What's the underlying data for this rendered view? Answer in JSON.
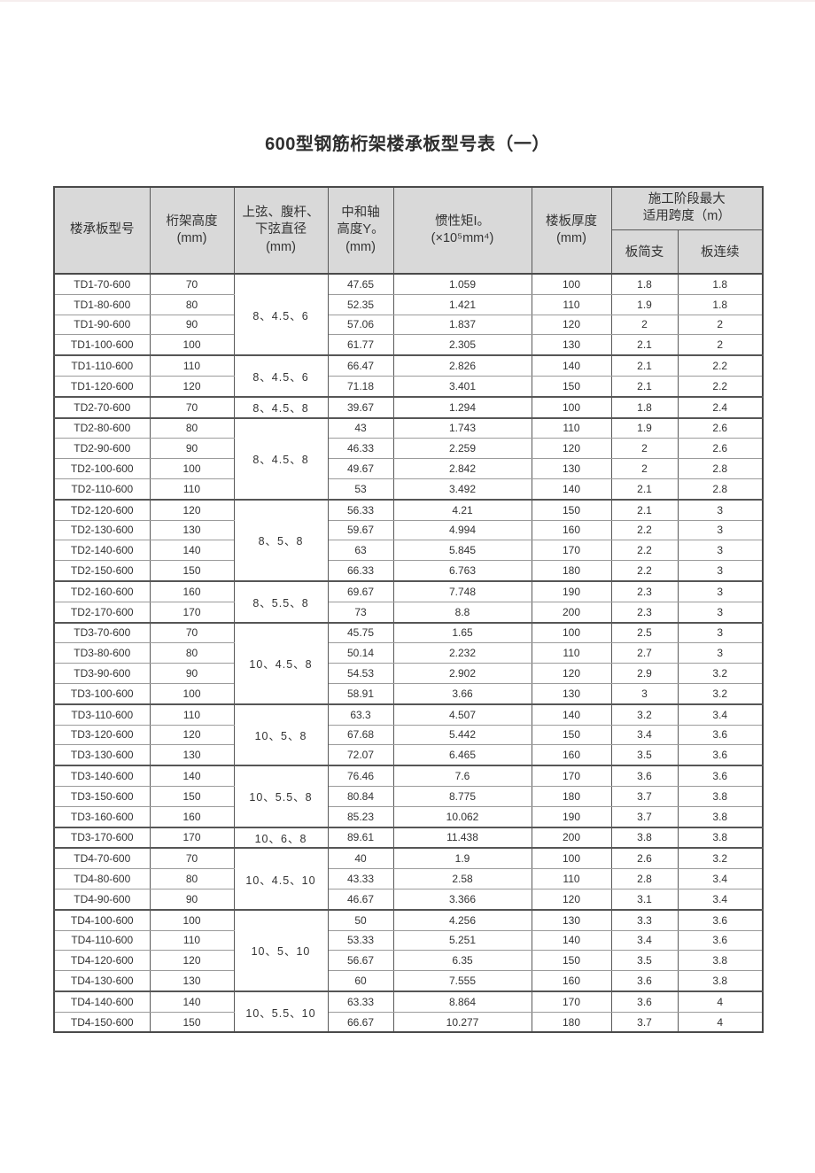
{
  "page": {
    "title": "600型钢筋桁架楼承板型号表（一）"
  },
  "colors": {
    "header_bg": "#d9d9d9",
    "border_dark": "#4a4a4a",
    "border": "#595959",
    "border_light": "#9b9b9b",
    "text": "#333333"
  },
  "table": {
    "header": {
      "model": "楼承板型号",
      "truss_height": [
        "桁架高度",
        "(mm)"
      ],
      "diameter": [
        "上弦、腹杆、",
        "下弦直径",
        "(mm)"
      ],
      "neutral_axis": [
        "中和轴",
        "高度Y。",
        "(mm)"
      ],
      "inertia": [
        "惯性矩I。",
        "(×10⁵mm⁴)"
      ],
      "slab_thickness": [
        "楼板厚度",
        "(mm)"
      ],
      "span_group": [
        "施工阶段最大",
        "适用跨度（m）"
      ],
      "simple": "板简支",
      "continuous": "板连续"
    },
    "diameter_groups": [
      {
        "label": "8、4.5、6",
        "span": 4
      },
      {
        "label": "8、4.5、6",
        "span": 2
      },
      {
        "label": "8、4.5、8",
        "span": 1
      },
      {
        "label": "8、4.5、8",
        "span": 4
      },
      {
        "label": "8、5、8",
        "span": 4
      },
      {
        "label": "8、5.5、8",
        "span": 2
      },
      {
        "label": "10、4.5、8",
        "span": 4
      },
      {
        "label": "10、5、8",
        "span": 3
      },
      {
        "label": "10、5.5、8",
        "span": 3
      },
      {
        "label": "10、6、8",
        "span": 1
      },
      {
        "label": "10、4.5、10",
        "span": 3
      },
      {
        "label": "10、5、10",
        "span": 4
      },
      {
        "label": "10、5.5、10",
        "span": 2
      }
    ],
    "rows": [
      {
        "model": "TD1-70-600",
        "height": "70",
        "y0": "47.65",
        "inertia": "1.059",
        "thickness": "100",
        "simple": "1.8",
        "continuous": "1.8"
      },
      {
        "model": "TD1-80-600",
        "height": "80",
        "y0": "52.35",
        "inertia": "1.421",
        "thickness": "110",
        "simple": "1.9",
        "continuous": "1.8"
      },
      {
        "model": "TD1-90-600",
        "height": "90",
        "y0": "57.06",
        "inertia": "1.837",
        "thickness": "120",
        "simple": "2",
        "continuous": "2"
      },
      {
        "model": "TD1-100-600",
        "height": "100",
        "y0": "61.77",
        "inertia": "2.305",
        "thickness": "130",
        "simple": "2.1",
        "continuous": "2"
      },
      {
        "model": "TD1-110-600",
        "height": "110",
        "y0": "66.47",
        "inertia": "2.826",
        "thickness": "140",
        "simple": "2.1",
        "continuous": "2.2"
      },
      {
        "model": "TD1-120-600",
        "height": "120",
        "y0": "71.18",
        "inertia": "3.401",
        "thickness": "150",
        "simple": "2.1",
        "continuous": "2.2"
      },
      {
        "model": "TD2-70-600",
        "height": "70",
        "y0": "39.67",
        "inertia": "1.294",
        "thickness": "100",
        "simple": "1.8",
        "continuous": "2.4"
      },
      {
        "model": "TD2-80-600",
        "height": "80",
        "y0": "43",
        "inertia": "1.743",
        "thickness": "110",
        "simple": "1.9",
        "continuous": "2.6"
      },
      {
        "model": "TD2-90-600",
        "height": "90",
        "y0": "46.33",
        "inertia": "2.259",
        "thickness": "120",
        "simple": "2",
        "continuous": "2.6"
      },
      {
        "model": "TD2-100-600",
        "height": "100",
        "y0": "49.67",
        "inertia": "2.842",
        "thickness": "130",
        "simple": "2",
        "continuous": "2.8"
      },
      {
        "model": "TD2-110-600",
        "height": "110",
        "y0": "53",
        "inertia": "3.492",
        "thickness": "140",
        "simple": "2.1",
        "continuous": "2.8"
      },
      {
        "model": "TD2-120-600",
        "height": "120",
        "y0": "56.33",
        "inertia": "4.21",
        "thickness": "150",
        "simple": "2.1",
        "continuous": "3"
      },
      {
        "model": "TD2-130-600",
        "height": "130",
        "y0": "59.67",
        "inertia": "4.994",
        "thickness": "160",
        "simple": "2.2",
        "continuous": "3"
      },
      {
        "model": "TD2-140-600",
        "height": "140",
        "y0": "63",
        "inertia": "5.845",
        "thickness": "170",
        "simple": "2.2",
        "continuous": "3"
      },
      {
        "model": "TD2-150-600",
        "height": "150",
        "y0": "66.33",
        "inertia": "6.763",
        "thickness": "180",
        "simple": "2.2",
        "continuous": "3"
      },
      {
        "model": "TD2-160-600",
        "height": "160",
        "y0": "69.67",
        "inertia": "7.748",
        "thickness": "190",
        "simple": "2.3",
        "continuous": "3"
      },
      {
        "model": "TD2-170-600",
        "height": "170",
        "y0": "73",
        "inertia": "8.8",
        "thickness": "200",
        "simple": "2.3",
        "continuous": "3"
      },
      {
        "model": "TD3-70-600",
        "height": "70",
        "y0": "45.75",
        "inertia": "1.65",
        "thickness": "100",
        "simple": "2.5",
        "continuous": "3"
      },
      {
        "model": "TD3-80-600",
        "height": "80",
        "y0": "50.14",
        "inertia": "2.232",
        "thickness": "110",
        "simple": "2.7",
        "continuous": "3"
      },
      {
        "model": "TD3-90-600",
        "height": "90",
        "y0": "54.53",
        "inertia": "2.902",
        "thickness": "120",
        "simple": "2.9",
        "continuous": "3.2"
      },
      {
        "model": "TD3-100-600",
        "height": "100",
        "y0": "58.91",
        "inertia": "3.66",
        "thickness": "130",
        "simple": "3",
        "continuous": "3.2"
      },
      {
        "model": "TD3-110-600",
        "height": "110",
        "y0": "63.3",
        "inertia": "4.507",
        "thickness": "140",
        "simple": "3.2",
        "continuous": "3.4"
      },
      {
        "model": "TD3-120-600",
        "height": "120",
        "y0": "67.68",
        "inertia": "5.442",
        "thickness": "150",
        "simple": "3.4",
        "continuous": "3.6"
      },
      {
        "model": "TD3-130-600",
        "height": "130",
        "y0": "72.07",
        "inertia": "6.465",
        "thickness": "160",
        "simple": "3.5",
        "continuous": "3.6"
      },
      {
        "model": "TD3-140-600",
        "height": "140",
        "y0": "76.46",
        "inertia": "7.6",
        "thickness": "170",
        "simple": "3.6",
        "continuous": "3.6"
      },
      {
        "model": "TD3-150-600",
        "height": "150",
        "y0": "80.84",
        "inertia": "8.775",
        "thickness": "180",
        "simple": "3.7",
        "continuous": "3.8"
      },
      {
        "model": "TD3-160-600",
        "height": "160",
        "y0": "85.23",
        "inertia": "10.062",
        "thickness": "190",
        "simple": "3.7",
        "continuous": "3.8"
      },
      {
        "model": "TD3-170-600",
        "height": "170",
        "y0": "89.61",
        "inertia": "11.438",
        "thickness": "200",
        "simple": "3.8",
        "continuous": "3.8"
      },
      {
        "model": "TD4-70-600",
        "height": "70",
        "y0": "40",
        "inertia": "1.9",
        "thickness": "100",
        "simple": "2.6",
        "continuous": "3.2"
      },
      {
        "model": "TD4-80-600",
        "height": "80",
        "y0": "43.33",
        "inertia": "2.58",
        "thickness": "110",
        "simple": "2.8",
        "continuous": "3.4"
      },
      {
        "model": "TD4-90-600",
        "height": "90",
        "y0": "46.67",
        "inertia": "3.366",
        "thickness": "120",
        "simple": "3.1",
        "continuous": "3.4"
      },
      {
        "model": "TD4-100-600",
        "height": "100",
        "y0": "50",
        "inertia": "4.256",
        "thickness": "130",
        "simple": "3.3",
        "continuous": "3.6"
      },
      {
        "model": "TD4-110-600",
        "height": "110",
        "y0": "53.33",
        "inertia": "5.251",
        "thickness": "140",
        "simple": "3.4",
        "continuous": "3.6"
      },
      {
        "model": "TD4-120-600",
        "height": "120",
        "y0": "56.67",
        "inertia": "6.35",
        "thickness": "150",
        "simple": "3.5",
        "continuous": "3.8"
      },
      {
        "model": "TD4-130-600",
        "height": "130",
        "y0": "60",
        "inertia": "7.555",
        "thickness": "160",
        "simple": "3.6",
        "continuous": "3.8"
      },
      {
        "model": "TD4-140-600",
        "height": "140",
        "y0": "63.33",
        "inertia": "8.864",
        "thickness": "170",
        "simple": "3.6",
        "continuous": "4"
      },
      {
        "model": "TD4-150-600",
        "height": "150",
        "y0": "66.67",
        "inertia": "10.277",
        "thickness": "180",
        "simple": "3.7",
        "continuous": "4"
      }
    ]
  }
}
